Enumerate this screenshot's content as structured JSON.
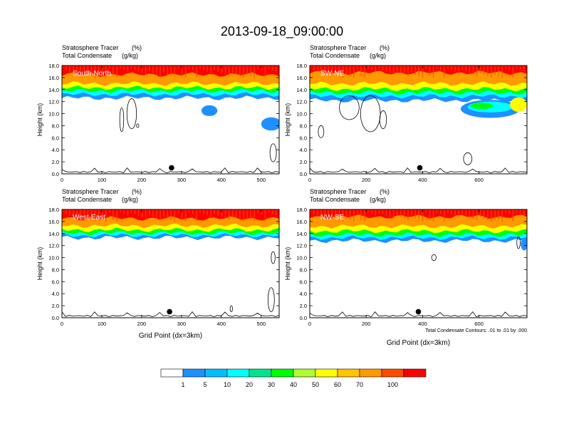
{
  "title": "2013-09-18_09:00:00",
  "colors": {
    "levels": [
      "#ffffff",
      "#1e90ff",
      "#00bfff",
      "#00ffff",
      "#00e58c",
      "#00ff00",
      "#adff2f",
      "#ffff00",
      "#ffc400",
      "#ff9900",
      "#ff4a00",
      "#ff0000"
    ]
  },
  "chart_data": [
    {
      "type": "heatmap",
      "panel_label": "South-North",
      "header_line1": "Stratosphere Tracer",
      "header_unit1": "(%)",
      "header_line2": "Total Condensate",
      "header_unit2": "(g/kg)",
      "ylabel": "Height (km)",
      "xlabel": "",
      "footnote": "",
      "x_range": [
        0,
        545
      ],
      "y_range": [
        0,
        18
      ],
      "x_ticks": [
        "0",
        "100",
        "200",
        "300",
        "400",
        "500"
      ],
      "y_ticks": [
        "0.0",
        "2.0",
        "4.0",
        "6.0",
        "8.0",
        "10.0",
        "12.0",
        "14.0",
        "16.0",
        "18.0"
      ],
      "marker": {
        "x": 275,
        "y": 1.0
      },
      "tracer_layers": [
        {
          "level_pct": 1,
          "base_km": 12.6
        },
        {
          "level_pct": 10,
          "base_km": 13.2
        },
        {
          "level_pct": 30,
          "base_km": 13.8
        },
        {
          "level_pct": 50,
          "base_km": 14.3
        },
        {
          "level_pct": 70,
          "base_km": 15.0
        },
        {
          "level_pct": 100,
          "base_km": 16.5
        }
      ],
      "blobs": [
        {
          "x": 370,
          "y": 10.5,
          "rx": 20,
          "ry": 0.9,
          "level_pct": 1
        },
        {
          "x": 525,
          "y": 8.3,
          "rx": 25,
          "ry": 1.1,
          "level_pct": 1
        }
      ],
      "condensate_contours": [
        {
          "x": 150,
          "y": 9.0,
          "rx": 5,
          "ry": 2.0
        },
        {
          "x": 175,
          "y": 10.0,
          "rx": 12,
          "ry": 2.5
        },
        {
          "x": 190,
          "y": 8.0,
          "rx": 3,
          "ry": 0.3
        },
        {
          "x": 530,
          "y": 3.5,
          "rx": 8,
          "ry": 1.5
        }
      ]
    },
    {
      "type": "heatmap",
      "panel_label": "SW-NE",
      "header_line1": "Stratosphere Tracer",
      "header_unit1": "(%)",
      "header_line2": "Total Condensate",
      "header_unit2": "(g/kg)",
      "ylabel": "Height (km)",
      "xlabel": "",
      "footnote": "",
      "x_range": [
        0,
        770
      ],
      "y_range": [
        0,
        18
      ],
      "x_ticks": [
        "0",
        "200",
        "400",
        "600"
      ],
      "y_ticks": [
        "0.0",
        "2.0",
        "4.0",
        "6.0",
        "8.0",
        "10.0",
        "12.0",
        "14.0",
        "16.0",
        "18.0"
      ],
      "marker": {
        "x": 390,
        "y": 1.0
      },
      "tracer_layers": [
        {
          "level_pct": 1,
          "base_km": 12.2
        },
        {
          "level_pct": 10,
          "base_km": 12.9
        },
        {
          "level_pct": 30,
          "base_km": 13.5
        },
        {
          "level_pct": 50,
          "base_km": 14.1
        },
        {
          "level_pct": 70,
          "base_km": 15.0
        },
        {
          "level_pct": 100,
          "base_km": 16.8
        }
      ],
      "blobs": [
        {
          "x": 640,
          "y": 10.8,
          "rx": 105,
          "ry": 1.5,
          "level_pct": 1
        },
        {
          "x": 640,
          "y": 11.1,
          "rx": 80,
          "ry": 0.9,
          "level_pct": 10
        },
        {
          "x": 610,
          "y": 11.3,
          "rx": 40,
          "ry": 0.5,
          "level_pct": 30
        },
        {
          "x": 740,
          "y": 11.5,
          "rx": 30,
          "ry": 1.2,
          "level_pct": 50
        }
      ],
      "condensate_contours": [
        {
          "x": 140,
          "y": 11.0,
          "rx": 35,
          "ry": 2.0
        },
        {
          "x": 215,
          "y": 10.0,
          "rx": 35,
          "ry": 3.0
        },
        {
          "x": 260,
          "y": 9.0,
          "rx": 12,
          "ry": 1.5
        },
        {
          "x": 40,
          "y": 7.0,
          "rx": 10,
          "ry": 1.0
        },
        {
          "x": 560,
          "y": 2.5,
          "rx": 15,
          "ry": 1.0
        }
      ]
    },
    {
      "type": "heatmap",
      "panel_label": "West-East",
      "header_line1": "Stratosphere Tracer",
      "header_unit1": "(%)",
      "header_line2": "Total Condensate",
      "header_unit2": "(g/kg)",
      "ylabel": "Height (km)",
      "xlabel": "Grid Point (dx=3km)",
      "footnote": "",
      "x_range": [
        0,
        545
      ],
      "y_range": [
        0,
        18
      ],
      "x_ticks": [
        "0",
        "100",
        "200",
        "300",
        "400",
        "500"
      ],
      "y_ticks": [
        "0.0",
        "2.0",
        "4.0",
        "6.0",
        "8.0",
        "10.0",
        "12.0",
        "14.0",
        "16.0",
        "18.0"
      ],
      "marker": {
        "x": 270,
        "y": 1.0
      },
      "tracer_layers": [
        {
          "level_pct": 1,
          "base_km": 13.3
        },
        {
          "level_pct": 10,
          "base_km": 13.7
        },
        {
          "level_pct": 30,
          "base_km": 14.1
        },
        {
          "level_pct": 50,
          "base_km": 14.6
        },
        {
          "level_pct": 70,
          "base_km": 15.3
        },
        {
          "level_pct": 100,
          "base_km": 16.5
        }
      ],
      "blobs": [],
      "condensate_contours": [
        {
          "x": 530,
          "y": 10.0,
          "rx": 5,
          "ry": 1.0
        },
        {
          "x": 525,
          "y": 3.0,
          "rx": 8,
          "ry": 2.0
        },
        {
          "x": 425,
          "y": 1.5,
          "rx": 3,
          "ry": 0.5
        }
      ]
    },
    {
      "type": "heatmap",
      "panel_label": "NW-SE",
      "header_line1": "Stratosphere Tracer",
      "header_unit1": "(%)",
      "header_line2": "Total Condensate",
      "header_unit2": "(g/kg)",
      "ylabel": "Height (km)",
      "xlabel": "Grid Point (dx=3km)",
      "footnote": "Total Condensate Contours: .01 to .01 by .000",
      "x_range": [
        0,
        770
      ],
      "y_range": [
        0,
        18
      ],
      "x_ticks": [
        "0",
        "200",
        "400",
        "600"
      ],
      "y_ticks": [
        "0.0",
        "2.0",
        "4.0",
        "6.0",
        "8.0",
        "10.0",
        "12.0",
        "14.0",
        "16.0",
        "18.0"
      ],
      "marker": {
        "x": 385,
        "y": 1.0
      },
      "tracer_layers": [
        {
          "level_pct": 1,
          "base_km": 12.8
        },
        {
          "level_pct": 10,
          "base_km": 13.3
        },
        {
          "level_pct": 30,
          "base_km": 13.8
        },
        {
          "level_pct": 50,
          "base_km": 14.4
        },
        {
          "level_pct": 70,
          "base_km": 15.2
        },
        {
          "level_pct": 100,
          "base_km": 16.8
        }
      ],
      "blobs": [
        {
          "x": 760,
          "y": 12.2,
          "rx": 12,
          "ry": 1.0,
          "level_pct": 1
        }
      ],
      "condensate_contours": [
        {
          "x": 440,
          "y": 10.0,
          "rx": 8,
          "ry": 0.5
        },
        {
          "x": 740,
          "y": 12.5,
          "rx": 6,
          "ry": 1.0
        }
      ]
    }
  ],
  "colorbar": {
    "labels": [
      "1",
      "5",
      "10",
      "20",
      "30",
      "40",
      "50",
      "60",
      "70",
      "100"
    ]
  }
}
